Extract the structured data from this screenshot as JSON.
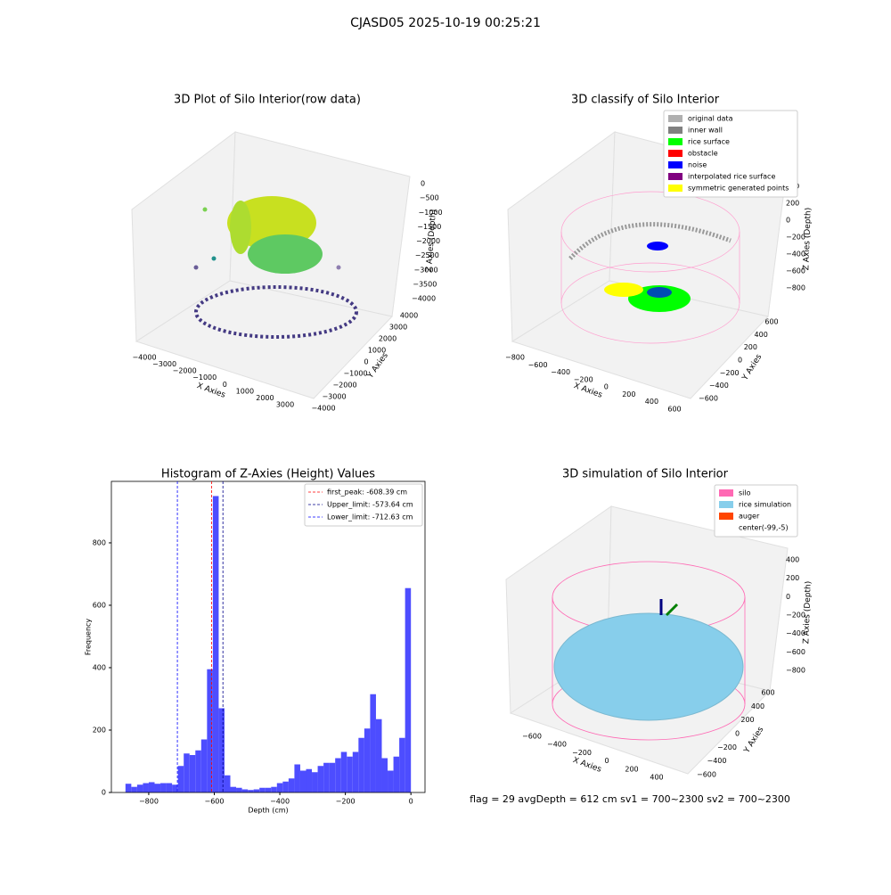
{
  "suptitle": "CJASD05 2025-10-19 00:25:21",
  "footer": "flag = 29  avgDepth = 612 cm  sv1 = 700~2300  sv2 = 700~2300",
  "chart_data": [
    {
      "type": "scatter3d",
      "title": "3D Plot of Silo Interior(row data)",
      "xlabel": "X Axies",
      "ylabel": "Y Axies",
      "zlabel": "Z Axies (Depth)",
      "xlim": [
        -4000,
        3000
      ],
      "xticks": [
        {
          "value": -4000,
          "label": "−4000"
        },
        {
          "value": -3000,
          "label": "−3000"
        },
        {
          "value": -2000,
          "label": "−2000"
        },
        {
          "value": -1000,
          "label": "−1000"
        },
        0,
        1000,
        2000,
        3000
      ],
      "ylim": [
        -4000,
        4000
      ],
      "yticks": [
        {
          "value": -4000,
          "label": "−4000"
        },
        {
          "value": -3000,
          "label": "−3000"
        },
        {
          "value": -2000,
          "label": "−2000"
        },
        {
          "value": -1000,
          "label": "−1000"
        },
        0,
        1000,
        2000,
        3000,
        4000
      ],
      "zlim": [
        -4000,
        0
      ],
      "zticks": [
        0,
        {
          "value": -500,
          "label": "−500"
        },
        {
          "value": -1000,
          "label": "−1000"
        },
        {
          "value": -1500,
          "label": "−1500"
        },
        {
          "value": -2000,
          "label": "−2000"
        },
        {
          "value": -2500,
          "label": "−2500"
        },
        {
          "value": -3000,
          "label": "−3000"
        },
        {
          "value": -3500,
          "label": "−3500"
        },
        {
          "value": -4000,
          "label": "−4000"
        }
      ]
    },
    {
      "type": "scatter3d",
      "title": "3D classify of Silo Interior",
      "xlabel": "X Axies",
      "ylabel": "Y Axies",
      "zlabel": "Z Axies (Depth)",
      "xlim": [
        -800,
        600
      ],
      "xticks": [
        {
          "value": -800,
          "label": "−800"
        },
        {
          "value": -600,
          "label": "−600"
        },
        {
          "value": -400,
          "label": "−400"
        },
        {
          "value": -200,
          "label": "−200"
        },
        0,
        200,
        400,
        600
      ],
      "ylim": [
        -600,
        600
      ],
      "yticks": [
        {
          "value": -600,
          "label": "−600"
        },
        {
          "value": -400,
          "label": "−400"
        },
        {
          "value": -200,
          "label": "−200"
        },
        0,
        200,
        400,
        600
      ],
      "zlim": [
        -800,
        400
      ],
      "zticks": [
        400,
        200,
        0,
        {
          "value": -200,
          "label": "−200"
        },
        {
          "value": -400,
          "label": "−400"
        },
        {
          "value": -600,
          "label": "−600"
        },
        {
          "value": -800,
          "label": "−800"
        }
      ],
      "legend": [
        {
          "name": "original data",
          "color": "#b0b0b0"
        },
        {
          "name": "inner wall",
          "color": "#808080"
        },
        {
          "name": "rice surface",
          "color": "#00ff00"
        },
        {
          "name": "obstacle",
          "color": "#ff0000"
        },
        {
          "name": "noise",
          "color": "#0000ff"
        },
        {
          "name": "interpolated rice surface",
          "color": "#800080"
        },
        {
          "name": "symmetric generated points",
          "color": "#ffff00"
        }
      ]
    },
    {
      "type": "histogram",
      "title": "Histogram of Z-Axies (Height) Values",
      "xlabel": "Depth (cm)",
      "ylabel": "Frequency",
      "color": "#4d4dff",
      "bins": [
        -871.0,
        -853.22,
        -835.45,
        -817.67,
        -799.9,
        -782.12,
        -764.35,
        -746.57,
        -728.8,
        -711.02,
        -693.25,
        -675.47,
        -657.69,
        -639.92,
        -622.14,
        -604.37,
        -586.59,
        -568.82,
        -551.04,
        -533.27,
        -515.49,
        -497.71,
        -479.94,
        -462.16,
        -444.39,
        -426.61,
        -408.84,
        -391.06,
        -373.29,
        -355.51,
        -337.73,
        -319.96,
        -302.18,
        -284.41,
        -266.63,
        -248.86,
        -231.08,
        -213.31,
        -195.53,
        -177.76,
        -159.98,
        -142.2,
        -124.43,
        -106.65,
        -88.88,
        -71.1,
        -53.33,
        -35.55,
        -17.78,
        0
      ],
      "values": [
        28,
        18,
        25,
        30,
        33,
        28,
        30,
        30,
        25,
        85,
        125,
        120,
        135,
        170,
        395,
        950,
        270,
        55,
        18,
        15,
        10,
        8,
        10,
        15,
        15,
        18,
        30,
        35,
        45,
        90,
        70,
        75,
        65,
        85,
        95,
        95,
        110,
        130,
        115,
        130,
        175,
        205,
        315,
        235,
        110,
        70,
        115,
        175,
        655
      ],
      "xlim": [
        -914,
        43
      ],
      "xticks": [
        {
          "value": -800,
          "label": "−800"
        },
        {
          "value": -600,
          "label": "−600"
        },
        {
          "value": -400,
          "label": "−400"
        },
        {
          "value": -200,
          "label": "−200"
        },
        0
      ],
      "ylim": [
        0,
        997
      ],
      "yticks": [
        0,
        200,
        400,
        600,
        800
      ],
      "vlines": [
        {
          "name": "first_peak: -608.39 cm",
          "value": -608.39,
          "color": "#ff0000"
        },
        {
          "name": "Upper_limit: -573.64 cm",
          "value": -573.64,
          "color": "#00008b"
        },
        {
          "name": "Lower_limit: -712.63 cm",
          "value": -712.63,
          "color": "#0000ff"
        }
      ],
      "legend_loc": "upper right"
    },
    {
      "type": "surface3d",
      "title": "3D simulation of Silo Interior",
      "xlabel": "X Axies",
      "ylabel": "Y Axies",
      "zlabel": "Z Axies (Depth)",
      "xlim": [
        -600,
        400
      ],
      "xticks": [
        {
          "value": -600,
          "label": "−600"
        },
        {
          "value": -400,
          "label": "−400"
        },
        {
          "value": -200,
          "label": "−200"
        },
        0,
        200,
        400
      ],
      "ylim": [
        -600,
        600
      ],
      "yticks": [
        {
          "value": -600,
          "label": "−600"
        },
        {
          "value": -400,
          "label": "−400"
        },
        {
          "value": -200,
          "label": "−200"
        },
        0,
        200,
        400,
        600
      ],
      "zlim": [
        -800,
        400
      ],
      "zticks": [
        400,
        200,
        0,
        {
          "value": -200,
          "label": "−200"
        },
        {
          "value": -400,
          "label": "−400"
        },
        {
          "value": -600,
          "label": "−600"
        },
        {
          "value": -800,
          "label": "−800"
        }
      ],
      "legend": [
        {
          "name": "silo",
          "color": "#ff69b4"
        },
        {
          "name": "rice simulation",
          "color": "#87ceeb"
        },
        {
          "name": "auger",
          "color": "#ff4500"
        },
        {
          "name": "center(-99,-5)",
          "color": "#ffffff"
        }
      ]
    }
  ]
}
